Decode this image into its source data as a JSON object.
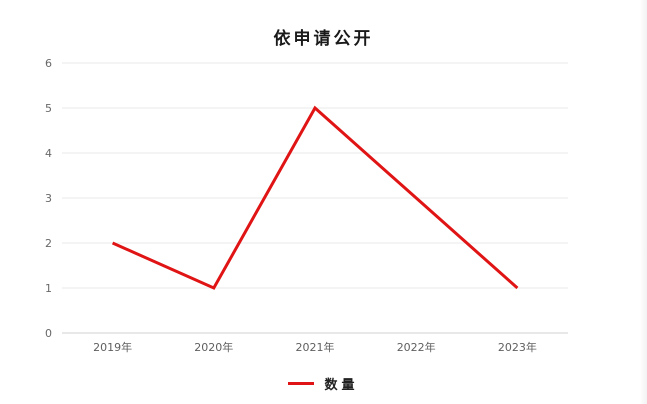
{
  "chart_data": {
    "type": "line",
    "title": "依申请公开",
    "categories": [
      "2019年",
      "2020年",
      "2021年",
      "2022年",
      "2023年"
    ],
    "series": [
      {
        "name": "数量",
        "values": [
          2,
          1,
          5,
          3,
          1
        ],
        "color": "#e01414"
      }
    ],
    "xlabel": "",
    "ylabel": "",
    "ylim": [
      0,
      6
    ],
    "y_ticks": [
      "0",
      "1",
      "2",
      "3",
      "4",
      "5",
      "6"
    ],
    "grid": true,
    "legend_position": "bottom"
  },
  "colors": {
    "series_red": "#e01414",
    "gridline": "#e9e9e9",
    "axis_line": "#d2d2d2",
    "tick_text": "#686868",
    "title_text": "#1a1a1a",
    "background": "#ffffff"
  }
}
